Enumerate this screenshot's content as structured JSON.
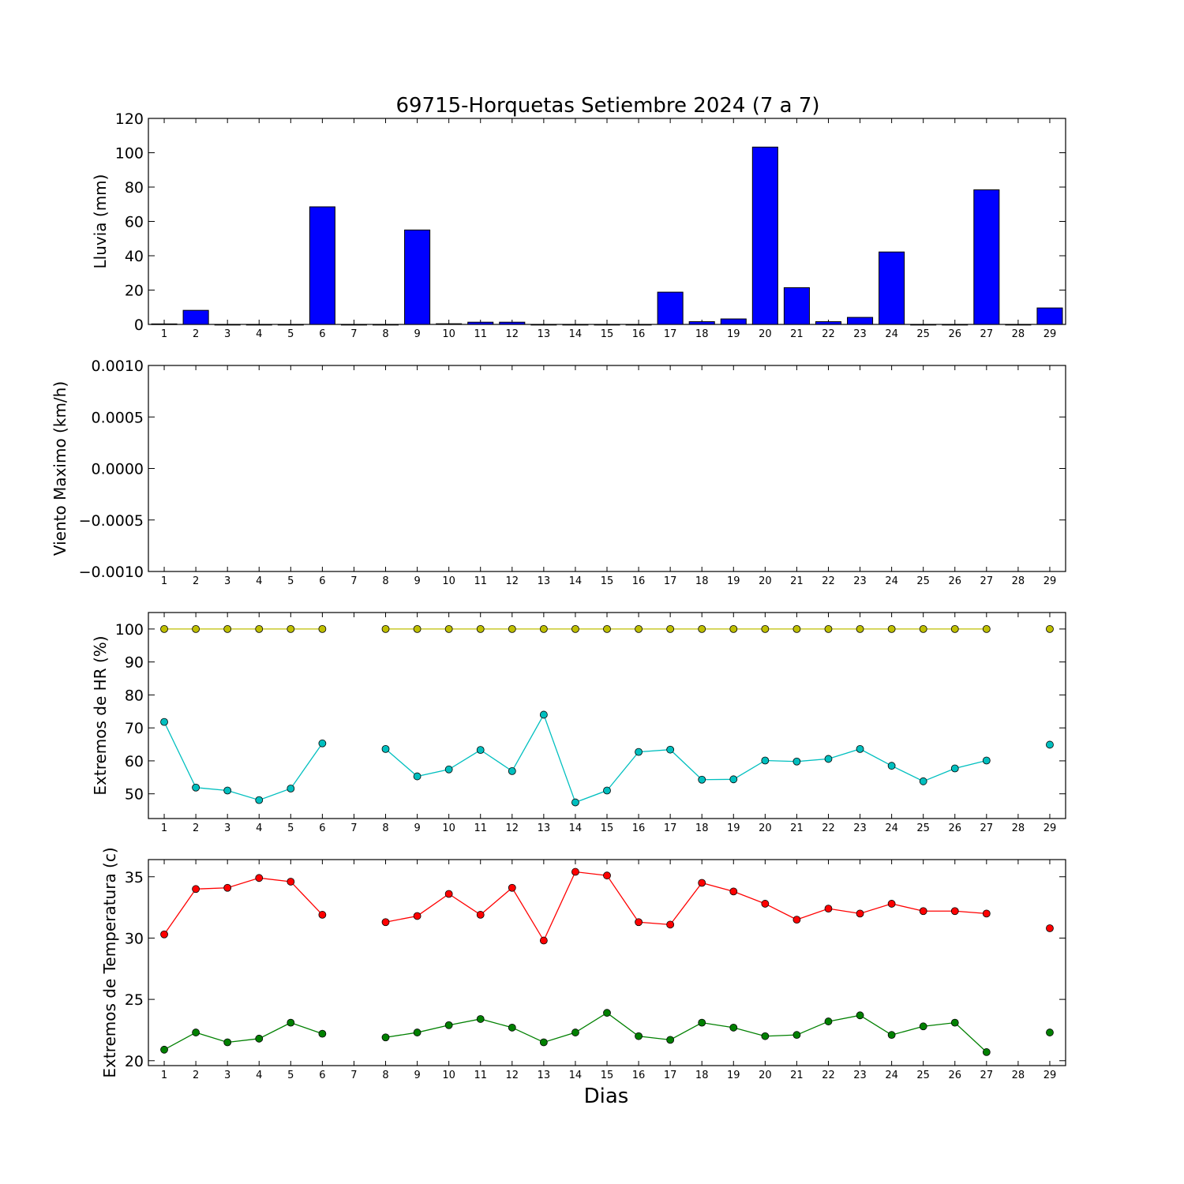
{
  "title": "69715-Horquetas Setiembre 2024  (7 a 7)",
  "xlabel": "Dias",
  "days": [
    1,
    2,
    3,
    4,
    5,
    6,
    7,
    8,
    9,
    10,
    11,
    12,
    13,
    14,
    15,
    16,
    17,
    18,
    19,
    20,
    21,
    22,
    23,
    24,
    25,
    26,
    27,
    28,
    29
  ],
  "colors": {
    "rain_bar": "#0000ff",
    "hr_max": "#bfbf00",
    "hr_min": "#00bfbf",
    "temp_max": "#ff0000",
    "temp_min": "#008000"
  },
  "chart_data": [
    {
      "id": "rain",
      "type": "bar",
      "ylabel": "Lluvia (mm)",
      "ylim": [
        0,
        120
      ],
      "yticks": [
        "0",
        "20",
        "40",
        "60",
        "80",
        "100",
        "120"
      ],
      "ytick_values": [
        0,
        20,
        40,
        60,
        80,
        100,
        120
      ],
      "categories": [
        1,
        2,
        3,
        4,
        5,
        6,
        7,
        8,
        9,
        10,
        11,
        12,
        13,
        14,
        15,
        16,
        17,
        18,
        19,
        20,
        21,
        22,
        23,
        24,
        25,
        26,
        27,
        28,
        29
      ],
      "values": [
        0.3,
        8.2,
        0,
        0,
        0,
        68.5,
        0,
        0,
        55,
        0.4,
        1.3,
        1.3,
        0,
        0,
        0,
        0,
        18.8,
        1.6,
        3.2,
        103.3,
        21.4,
        1.6,
        4.1,
        42.2,
        0,
        0,
        78.4,
        0,
        9.6
      ]
    },
    {
      "id": "wind",
      "type": "line",
      "ylabel": "Viento Maximo (km/h)",
      "ylim": [
        -0.001,
        0.001
      ],
      "yticks": [
        "−0.0010",
        "−0.0005",
        "0.0000",
        "0.0005",
        "0.0010"
      ],
      "ytick_values": [
        -0.001,
        -0.0005,
        0,
        0.0005,
        0.001
      ],
      "series": []
    },
    {
      "id": "hr",
      "type": "line",
      "ylabel": "Extremos de HR (%)",
      "ylim": [
        42.5,
        105
      ],
      "yticks": [
        "50",
        "60",
        "70",
        "80",
        "90",
        "100"
      ],
      "ytick_values": [
        50,
        60,
        70,
        80,
        90,
        100
      ],
      "series": [
        {
          "color_key": "hr_max",
          "values": [
            100,
            100,
            100,
            100,
            100,
            100,
            null,
            100,
            100,
            100,
            100,
            100,
            100,
            100,
            100,
            100,
            100,
            100,
            100,
            100,
            100,
            100,
            100,
            100,
            100,
            100,
            100,
            null,
            100
          ]
        },
        {
          "color_key": "hr_min",
          "values": [
            71.8,
            51.9,
            51,
            48.1,
            51.6,
            65.3,
            null,
            63.6,
            55.3,
            57.4,
            63.3,
            56.9,
            74,
            47.4,
            51,
            62.7,
            63.4,
            54.3,
            54.4,
            60.1,
            59.8,
            60.6,
            63.6,
            58.5,
            53.8,
            57.7,
            60.1,
            null,
            64.9
          ]
        }
      ]
    },
    {
      "id": "temp",
      "type": "line",
      "ylabel": "Extremos de Temperatura (c)",
      "ylim": [
        19.6,
        36.4
      ],
      "yticks": [
        "20",
        "25",
        "30",
        "35"
      ],
      "ytick_values": [
        20,
        25,
        30,
        35
      ],
      "series": [
        {
          "color_key": "temp_max",
          "values": [
            30.3,
            34,
            34.1,
            34.9,
            34.6,
            31.9,
            null,
            31.3,
            31.8,
            33.6,
            31.9,
            34.1,
            29.8,
            35.4,
            35.1,
            31.3,
            31.1,
            34.5,
            33.8,
            32.8,
            31.5,
            32.4,
            32,
            32.8,
            32.2,
            32.2,
            32,
            null,
            30.8
          ]
        },
        {
          "color_key": "temp_min",
          "values": [
            20.9,
            22.3,
            21.5,
            21.8,
            23.1,
            22.2,
            null,
            21.9,
            22.3,
            22.9,
            23.4,
            22.7,
            21.5,
            22.3,
            23.9,
            22,
            21.7,
            23.1,
            22.7,
            22,
            22.1,
            23.2,
            23.7,
            22.1,
            22.8,
            23.1,
            20.7,
            null,
            22.3
          ]
        }
      ]
    }
  ]
}
